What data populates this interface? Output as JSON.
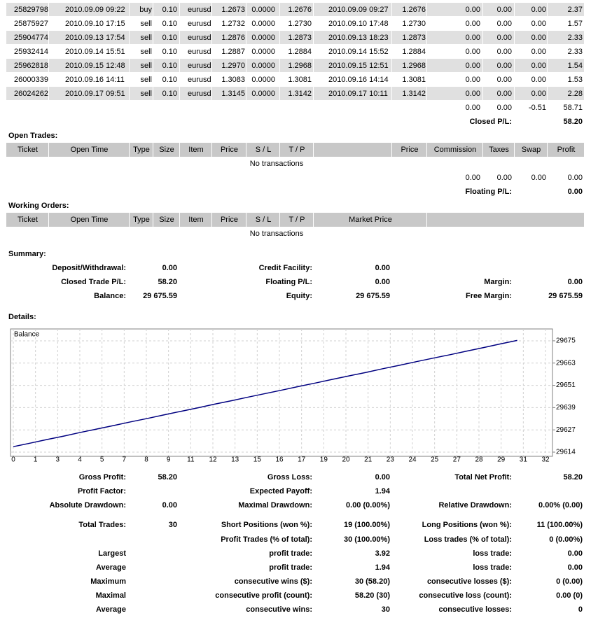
{
  "closed_trades": {
    "rows": [
      [
        "25829798",
        "2010.09.09 09:22",
        "buy",
        "0.10",
        "eurusd",
        "1.2673",
        "0.0000",
        "1.2676",
        "2010.09.09 09:27",
        "1.2676",
        "0.00",
        "0.00",
        "0.00",
        "2.37"
      ],
      [
        "25875927",
        "2010.09.10 17:15",
        "sell",
        "0.10",
        "eurusd",
        "1.2732",
        "0.0000",
        "1.2730",
        "2010.09.10 17:48",
        "1.2730",
        "0.00",
        "0.00",
        "0.00",
        "1.57"
      ],
      [
        "25904774",
        "2010.09.13 17:54",
        "sell",
        "0.10",
        "eurusd",
        "1.2876",
        "0.0000",
        "1.2873",
        "2010.09.13 18:23",
        "1.2873",
        "0.00",
        "0.00",
        "0.00",
        "2.33"
      ],
      [
        "25932414",
        "2010.09.14 15:51",
        "sell",
        "0.10",
        "eurusd",
        "1.2887",
        "0.0000",
        "1.2884",
        "2010.09.14 15:52",
        "1.2884",
        "0.00",
        "0.00",
        "0.00",
        "2.33"
      ],
      [
        "25962818",
        "2010.09.15 12:48",
        "sell",
        "0.10",
        "eurusd",
        "1.2970",
        "0.0000",
        "1.2968",
        "2010.09.15 12:51",
        "1.2968",
        "0.00",
        "0.00",
        "0.00",
        "1.54"
      ],
      [
        "26000339",
        "2010.09.16 14:11",
        "sell",
        "0.10",
        "eurusd",
        "1.3083",
        "0.0000",
        "1.3081",
        "2010.09.16 14:14",
        "1.3081",
        "0.00",
        "0.00",
        "0.00",
        "1.53"
      ],
      [
        "26024262",
        "2010.09.17 09:51",
        "sell",
        "0.10",
        "eurusd",
        "1.3145",
        "0.0000",
        "1.3142",
        "2010.09.17 10:11",
        "1.3142",
        "0.00",
        "0.00",
        "0.00",
        "2.28"
      ]
    ],
    "totals": [
      "0.00",
      "0.00",
      "-0.51",
      "58.71"
    ],
    "result_label": "Closed P/L:",
    "result": "58.20"
  },
  "open_trades": {
    "title": "Open Trades:",
    "headers": [
      "Ticket",
      "Open Time",
      "Type",
      "Size",
      "Item",
      "Price",
      "S / L",
      "T / P",
      null,
      "Price",
      "Commission",
      "Taxes",
      "Swap",
      "Profit"
    ],
    "empty": "No transactions",
    "totals": [
      "0.00",
      "0.00",
      "0.00",
      "0.00"
    ],
    "result_label": "Floating P/L:",
    "result": "0.00"
  },
  "working_orders": {
    "title": "Working Orders:",
    "headers": [
      "Ticket",
      "Open Time",
      "Type",
      "Size",
      "Item",
      "Price",
      "S / L",
      "T / P",
      "Market Price",
      null
    ],
    "empty": "No transactions"
  },
  "summary": {
    "title": "Summary:",
    "rows": [
      [
        "Deposit/Withdrawal:",
        "0.00",
        "Credit Facility:",
        "0.00",
        null,
        null
      ],
      [
        "Closed Trade P/L:",
        "58.20",
        "Floating P/L:",
        "0.00",
        "Margin:",
        "0.00"
      ],
      [
        "Balance:",
        "29 675.59",
        "Equity:",
        "29 675.59",
        "Free Margin:",
        "29 675.59"
      ]
    ]
  },
  "details": {
    "title": "Details:",
    "rows": [
      [
        "Gross Profit:",
        "58.20",
        "Gross Loss:",
        "0.00",
        "Total Net Profit:",
        "58.20"
      ],
      [
        "Profit Factor:",
        null,
        "Expected Payoff:",
        "1.94",
        null,
        null
      ],
      [
        "Absolute Drawdown:",
        "0.00",
        "Maximal Drawdown:",
        "0.00 (0.00%)",
        "Relative Drawdown:",
        "0.00% (0.00)"
      ],
      [
        "Total Trades:",
        "30",
        "Short Positions (won %):",
        "19 (100.00%)",
        "Long Positions (won %):",
        "11 (100.00%)"
      ],
      [
        null,
        null,
        "Profit Trades (% of total):",
        "30 (100.00%)",
        "Loss trades (% of total):",
        "0 (0.00%)"
      ],
      [
        "Largest",
        null,
        "profit trade:",
        "3.92",
        "loss trade:",
        "0.00"
      ],
      [
        "Average",
        null,
        "profit trade:",
        "1.94",
        "loss trade:",
        "0.00"
      ],
      [
        "Maximum",
        null,
        "consecutive wins ($):",
        "30 (58.20)",
        "consecutive losses ($):",
        "0 (0.00)"
      ],
      [
        "Maximal",
        null,
        "consecutive profit (count):",
        "58.20 (30)",
        "consecutive loss (count):",
        "0.00 (0)"
      ],
      [
        "Average",
        null,
        "consecutive wins:",
        "30",
        "consecutive losses:",
        "0"
      ]
    ]
  },
  "chart_data": {
    "type": "line",
    "x": [
      0,
      1.01,
      2.02,
      3.03,
      4.04,
      5.05,
      6.06,
      7.07,
      8.08,
      9.09,
      10.1,
      11.11,
      12.12,
      13.13,
      14.14,
      15.15,
      16.16,
      17.17,
      18.18,
      19.19,
      20.2,
      21.21,
      22.22,
      23.23,
      24.24,
      25.25,
      26.26,
      27.27,
      28.28,
      29.29,
      30.3
    ],
    "series": [
      {
        "name": "Balance",
        "color": "#000080",
        "values": [
          29617.4,
          29619.3,
          29621.3,
          29623.2,
          29625.2,
          29627.1,
          29629,
          29631,
          29632.9,
          29634.9,
          29636.8,
          29638.7,
          29640.7,
          29642.6,
          29644.6,
          29646.5,
          29648.4,
          29650.4,
          29652.3,
          29654.3,
          29656.2,
          29658.1,
          29660.1,
          29662,
          29664,
          29665.9,
          29667.8,
          29669.8,
          29671.7,
          29673.7,
          29675.6
        ]
      }
    ],
    "xlim": [
      0,
      32
    ],
    "ylim": [
      29612.1,
      29681.9
    ],
    "xticks": [
      0,
      {
        "value": 1.333,
        "label": "1"
      },
      {
        "value": 2.667,
        "label": "3"
      },
      4,
      {
        "value": 5.333,
        "label": "5"
      },
      {
        "value": 6.667,
        "label": "7"
      },
      8,
      {
        "value": 9.333,
        "label": "9"
      },
      {
        "value": 10.667,
        "label": "11"
      },
      12,
      {
        "value": 13.333,
        "label": "13"
      },
      {
        "value": 14.667,
        "label": "15"
      },
      16,
      {
        "value": 17.333,
        "label": "17"
      },
      {
        "value": 18.667,
        "label": "19"
      },
      20,
      {
        "value": 21.333,
        "label": "21"
      },
      {
        "value": 22.667,
        "label": "23"
      },
      24,
      {
        "value": 25.333,
        "label": "25"
      },
      {
        "value": 26.667,
        "label": "27"
      },
      28,
      {
        "value": 29.333,
        "label": "29"
      },
      {
        "value": 30.667,
        "label": "31"
      },
      32
    ],
    "yticks": [
      {
        "value": 29614.4,
        "label": "29614"
      },
      {
        "value": 29626.6,
        "label": "29627"
      },
      {
        "value": 29638.8,
        "label": "29639"
      },
      {
        "value": 29651,
        "label": "29651"
      },
      {
        "value": 29663.2,
        "label": "29663"
      },
      {
        "value": 29675.4,
        "label": "29675"
      }
    ],
    "grid": true
  }
}
